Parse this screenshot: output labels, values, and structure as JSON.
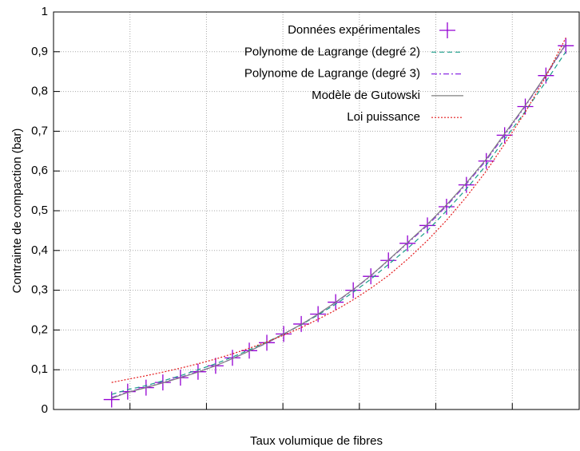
{
  "chart_data": {
    "type": "line",
    "ylabel": "Contrainte de compaction (bar)",
    "xlabel": "Taux volumique de fibres",
    "x": [
      0.76,
      0.97,
      1.21,
      1.43,
      1.66,
      1.89,
      2.12,
      2.34,
      2.56,
      2.79,
      3.01,
      3.24,
      3.46,
      3.69,
      3.92,
      4.15,
      4.38,
      4.63,
      4.89,
      5.14,
      5.4,
      5.66,
      5.9,
      6.17,
      6.44,
      6.7
    ],
    "series": [
      {
        "name": "Données expérimentales",
        "color": "#9400d3",
        "marker": "plus",
        "values": [
          0.025,
          0.045,
          0.055,
          0.068,
          0.08,
          0.095,
          0.11,
          0.13,
          0.148,
          0.168,
          0.19,
          0.215,
          0.24,
          0.27,
          0.3,
          0.335,
          0.375,
          0.418,
          0.463,
          0.51,
          0.565,
          0.625,
          0.69,
          0.762,
          0.84,
          0.915
        ]
      },
      {
        "name": "Polynome de Lagrange (degré 2)",
        "color": "#1a9e8a",
        "dash": "6 4",
        "values": [
          0.038,
          0.05,
          0.06,
          0.072,
          0.085,
          0.1,
          0.115,
          0.132,
          0.15,
          0.17,
          0.19,
          0.213,
          0.238,
          0.265,
          0.295,
          0.328,
          0.365,
          0.405,
          0.45,
          0.5,
          0.555,
          0.615,
          0.68,
          0.75,
          0.825,
          0.9
        ]
      },
      {
        "name": "Polynome de Lagrange (degré 3)",
        "color": "#8a2be2",
        "dash": "7 3 2 3",
        "values": [
          0.03,
          0.044,
          0.056,
          0.068,
          0.081,
          0.095,
          0.11,
          0.128,
          0.147,
          0.167,
          0.19,
          0.214,
          0.24,
          0.269,
          0.301,
          0.336,
          0.375,
          0.418,
          0.463,
          0.512,
          0.567,
          0.627,
          0.69,
          0.763,
          0.84,
          0.918
        ]
      },
      {
        "name": "Modèle de Gutowski",
        "color": "#808080",
        "dash": "none",
        "values": [
          0.028,
          0.043,
          0.055,
          0.067,
          0.08,
          0.094,
          0.11,
          0.128,
          0.147,
          0.168,
          0.19,
          0.214,
          0.24,
          0.27,
          0.302,
          0.337,
          0.376,
          0.42,
          0.466,
          0.515,
          0.57,
          0.63,
          0.694,
          0.765,
          0.842,
          0.92
        ]
      },
      {
        "name": "Loi puissance",
        "color": "#e41a1c",
        "dash": "2 2",
        "values": [
          0.068,
          0.076,
          0.085,
          0.094,
          0.104,
          0.115,
          0.127,
          0.14,
          0.154,
          0.17,
          0.187,
          0.206,
          0.227,
          0.25,
          0.276,
          0.305,
          0.337,
          0.378,
          0.425,
          0.476,
          0.535,
          0.6,
          0.668,
          0.748,
          0.838,
          0.935
        ]
      }
    ],
    "xlim": [
      0,
      6.875
    ],
    "xticks": [
      0,
      1,
      2,
      3,
      4,
      5,
      6
    ],
    "ylim": [
      0,
      1
    ],
    "yticks": [
      0,
      {
        "value": 0.1,
        "label": "0,1"
      },
      {
        "value": 0.2,
        "label": "0,2"
      },
      {
        "value": 0.3,
        "label": "0,3"
      },
      {
        "value": 0.4,
        "label": "0,4"
      },
      {
        "value": 0.5,
        "label": "0,5"
      },
      {
        "value": 0.6,
        "label": "0,6"
      },
      {
        "value": 0.7,
        "label": "0,7"
      },
      {
        "value": 0.8,
        "label": "0,8"
      },
      {
        "value": 0.9,
        "label": "0,9"
      },
      1
    ],
    "grid": true,
    "legend": "top-right"
  }
}
